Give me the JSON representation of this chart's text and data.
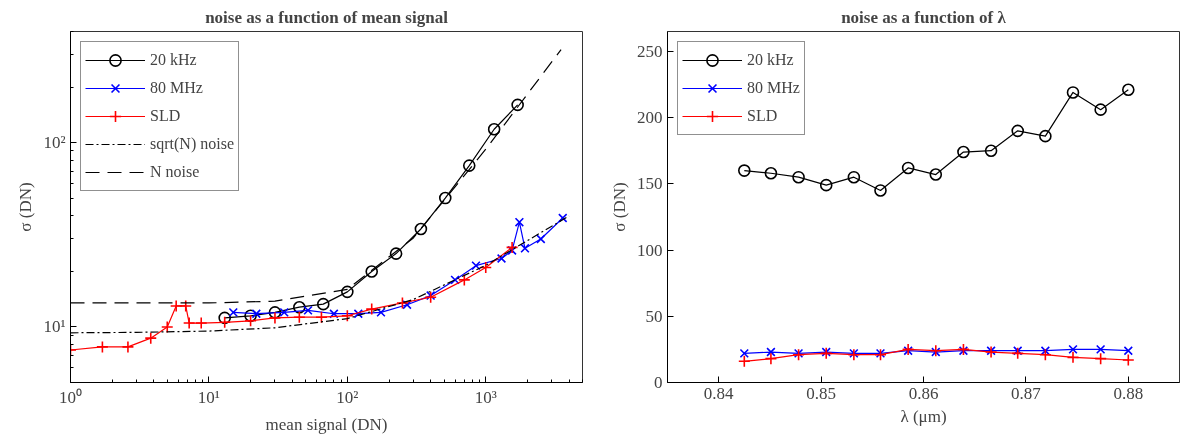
{
  "chart_data": [
    {
      "type": "line",
      "title": "noise as a function of mean signal",
      "xlabel": "mean signal (DN)",
      "ylabel": "σ (DN)",
      "log": "xy",
      "xlim": [
        1,
        5000
      ],
      "ylim": [
        5,
        400
      ],
      "xticks": [
        {
          "value": 1,
          "label": "10⁰"
        },
        {
          "value": 10,
          "label": "10¹"
        },
        {
          "value": 100,
          "label": "10²"
        },
        {
          "value": 1000,
          "label": "10³"
        }
      ],
      "yticks": [
        {
          "value": 10,
          "label": "10¹"
        },
        {
          "value": 100,
          "label": "10²"
        }
      ],
      "grid": false,
      "legend": "top left",
      "series": [
        {
          "name": "20 kHz",
          "color": "#000000",
          "marker": "circle",
          "x": [
            13,
            20,
            30,
            45,
            67,
            100,
            150,
            225,
            340,
            510,
            760,
            1150,
            1700
          ],
          "values": [
            11.2,
            11.5,
            12,
            12.8,
            13.3,
            15.5,
            20,
            25,
            34,
            50,
            75,
            118,
            160
          ]
        },
        {
          "name": "80 MHz",
          "color": "#0000ff",
          "marker": "x",
          "x": [
            15,
            22,
            35,
            52,
            80,
            120,
            175,
            270,
            400,
            600,
            850,
            1300,
            1550,
            1750,
            1920,
            2500,
            3600
          ],
          "values": [
            12,
            11.8,
            12,
            12.3,
            11.8,
            11.8,
            12,
            13.2,
            14.8,
            18,
            21.5,
            23.5,
            26,
            37,
            26.7,
            30,
            39
          ]
        },
        {
          "name": "SLD",
          "color": "#ff0000",
          "marker": "cross",
          "x": [
            1,
            1.7,
            2.6,
            3.8,
            5,
            5.8,
            6.8,
            7.2,
            8.8,
            13,
            20,
            30,
            45,
            65,
            100,
            150,
            250,
            400,
            700,
            1000,
            1550
          ],
          "values": [
            7.5,
            7.8,
            7.8,
            8.7,
            10,
            13,
            13,
            10.5,
            10.5,
            10.6,
            10.8,
            11.2,
            11.3,
            11.3,
            11.5,
            12.5,
            13.5,
            14.5,
            18,
            21,
            27
          ]
        },
        {
          "name": "sqrt(N) noise",
          "color": "#000000",
          "marker": "none",
          "line_style": "dashdot",
          "x": [
            1,
            3,
            10,
            30,
            100,
            300,
            1000,
            4000
          ],
          "values": [
            9.3,
            9.35,
            9.5,
            9.9,
            11.1,
            14.1,
            21.6,
            40
          ]
        },
        {
          "name": "N noise",
          "color": "#000000",
          "marker": "none",
          "line_style": "dashed",
          "x": [
            1,
            10,
            30,
            100,
            300,
            1000,
            3500
          ],
          "values": [
            13.5,
            13.5,
            13.8,
            16,
            30.4,
            92,
            319
          ]
        }
      ]
    },
    {
      "type": "line",
      "title": "noise as a function of λ",
      "xlabel": "λ (μm)",
      "ylabel": "σ (DN)",
      "xlim": [
        0.835,
        0.885
      ],
      "ylim": [
        0,
        265
      ],
      "xticks": [
        0.84,
        0.85,
        0.86,
        0.87,
        0.88
      ],
      "yticks": [
        0,
        50,
        100,
        150,
        200,
        250
      ],
      "grid": false,
      "legend": "top left",
      "series": [
        {
          "name": "20 kHz",
          "color": "#000000",
          "marker": "circle",
          "x": [
            0.8425,
            0.8451,
            0.8478,
            0.8505,
            0.8532,
            0.8558,
            0.8585,
            0.8612,
            0.8639,
            0.8666,
            0.8692,
            0.8719,
            0.8746,
            0.8773,
            0.88
          ],
          "values": [
            160,
            158,
            155,
            149,
            155,
            145,
            162,
            157,
            174,
            175,
            190,
            186,
            219,
            206,
            221
          ]
        },
        {
          "name": "80 MHz",
          "color": "#0000ff",
          "marker": "x",
          "x": [
            0.8425,
            0.8451,
            0.8478,
            0.8505,
            0.8532,
            0.8558,
            0.8585,
            0.8612,
            0.8639,
            0.8666,
            0.8692,
            0.8719,
            0.8746,
            0.8773,
            0.88
          ],
          "values": [
            22,
            23,
            22,
            23,
            22,
            22,
            24,
            23,
            24,
            24,
            24,
            24,
            25,
            25,
            24
          ]
        },
        {
          "name": "SLD",
          "color": "#ff0000",
          "marker": "cross",
          "x": [
            0.8425,
            0.8451,
            0.8478,
            0.8505,
            0.8532,
            0.8558,
            0.8585,
            0.8612,
            0.8639,
            0.8666,
            0.8692,
            0.8719,
            0.8746,
            0.8773,
            0.88
          ],
          "values": [
            16,
            18,
            21,
            22,
            21,
            21,
            25,
            24,
            25,
            23,
            22,
            21,
            19,
            18,
            17
          ]
        }
      ]
    }
  ]
}
